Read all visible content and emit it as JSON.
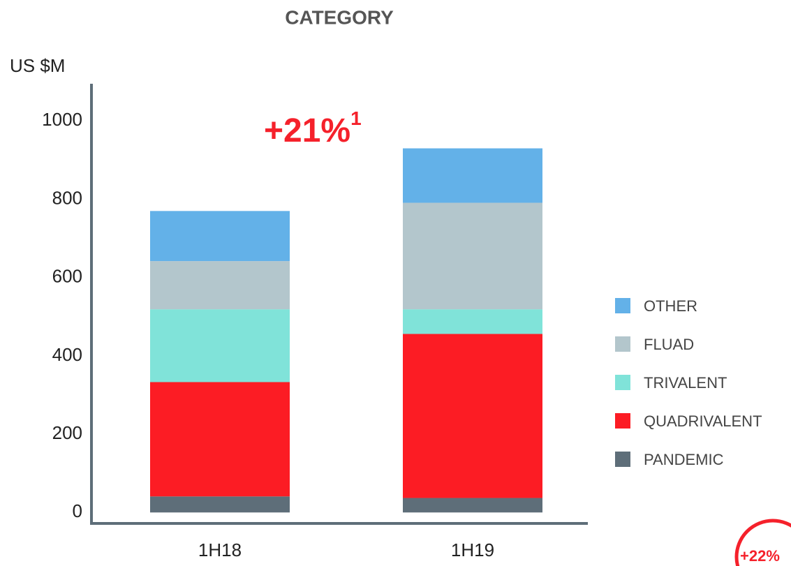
{
  "chart_data": {
    "type": "stacked-bar",
    "title": "CATEGORY",
    "y_label": "US $M",
    "categories": [
      "1H18",
      "1H19"
    ],
    "series": [
      {
        "name": "PANDEMIC",
        "color": "#5e6e79",
        "values": [
          41,
          37
        ]
      },
      {
        "name": "QUADRIVALENT",
        "color": "#fc1c24",
        "values": [
          292,
          419
        ]
      },
      {
        "name": "TRIVALENT",
        "color": "#80e3d9",
        "values": [
          186,
          63
        ]
      },
      {
        "name": "FLUAD",
        "color": "#b3c6cc",
        "values": [
          123,
          272
        ]
      },
      {
        "name": "OTHER",
        "color": "#63b1e8",
        "values": [
          128,
          139
        ]
      }
    ],
    "ylim": [
      -28,
      1095
    ],
    "yticks": [
      0,
      200,
      400,
      600,
      800,
      1000
    ],
    "annotation": {
      "text": "+21%",
      "superscript": "1"
    },
    "badge": "+22%"
  }
}
